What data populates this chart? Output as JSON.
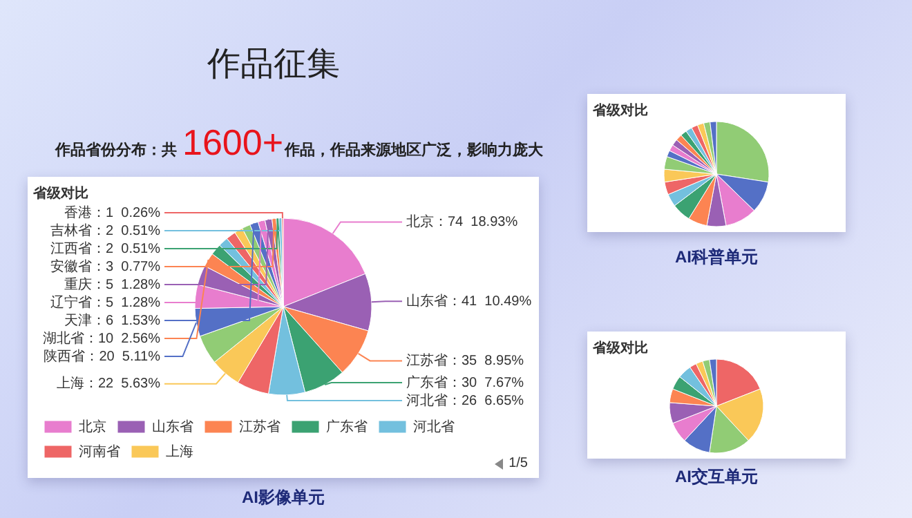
{
  "chart_data": [
    {
      "type": "other",
      "title": "作品征集",
      "annotations": [
        "作品省份分布：共",
        "1600+",
        "作品，作品来源地区广泛，影响力庞大"
      ]
    },
    {
      "type": "pie",
      "title": "省级对比",
      "legend": "bottom",
      "annotations": [
        "1/5",
        "AI影像单元"
      ],
      "categories": [
        "北京",
        "山东省",
        "江苏省",
        "广东省",
        "河北省",
        "河南省",
        "上海",
        null,
        "陕西省",
        null,
        null,
        "湖北省",
        null,
        null,
        null,
        null,
        null,
        "天津",
        "辽宁省",
        "重庆",
        "安徽省",
        "江西省",
        "吉林省",
        "香港"
      ],
      "values": [
        74,
        41,
        35,
        30,
        26,
        23,
        22,
        21,
        20,
        17,
        14,
        10,
        8,
        7,
        7,
        6,
        6,
        6,
        5,
        5,
        3,
        2,
        2,
        1
      ],
      "value_labels": [
        "：74  18.93%",
        "：41  10.49%",
        "：35  8.95%",
        "：30  7.67%",
        "：26  6.65%",
        null,
        "：22  5.63%",
        null,
        "：20  5.11%",
        null,
        null,
        "：10  2.56%",
        null,
        null,
        null,
        null,
        null,
        "：6  1.53%",
        "：5  1.28%",
        "：5  1.28%",
        "：3  0.77%",
        "：2  0.51%",
        "：2  0.51%",
        "：1  0.26%"
      ],
      "colors": [
        "#e87dce",
        "#9a60b4",
        "#fc8452",
        "#3ba272",
        "#73c0de",
        "#ee6666",
        "#fac858",
        "#91cc75",
        "#5470c6",
        "#e87dce",
        "#9a60b4",
        "#fc8452",
        "#3ba272",
        "#73c0de",
        "#ee6666",
        "#fac858",
        "#91cc75",
        "#5470c6",
        "#e87dce",
        "#9a60b4",
        "#fc8452",
        "#3ba272",
        "#73c0de",
        "#ee6666"
      ]
    },
    {
      "type": "pie",
      "title": "省级对比",
      "annotations": [
        "AI科普单元"
      ],
      "categories": [
        null,
        null,
        null,
        null,
        null,
        null,
        null,
        null,
        null,
        null,
        null,
        null,
        null,
        null,
        null,
        null,
        null,
        null,
        null,
        null
      ],
      "values": [
        27.45,
        9.8,
        9.8,
        5.88,
        5.88,
        5.88,
        3.92,
        3.92,
        3.92,
        3.92,
        1.96,
        1.96,
        1.96,
        1.96,
        1.96,
        1.96,
        1.96,
        1.96,
        1.96,
        1.96
      ],
      "colors": [
        "#91cc75",
        "#5470c6",
        "#e87dce",
        "#9a60b4",
        "#fc8452",
        "#3ba272",
        "#73c0de",
        "#ee6666",
        "#fac858",
        "#91cc75",
        "#5470c6",
        "#e87dce",
        "#9a60b4",
        "#fc8452",
        "#3ba272",
        "#73c0de",
        "#ee6666",
        "#fac858",
        "#91cc75",
        "#5470c6"
      ]
    },
    {
      "type": "pie",
      "title": "省级对比",
      "annotations": [
        "AI交互单元"
      ],
      "categories": [
        null,
        null,
        null,
        null,
        null,
        null,
        null,
        null,
        null,
        null,
        null,
        null,
        null
      ],
      "values": [
        19.05,
        19.05,
        14.29,
        9.52,
        7.14,
        7.14,
        4.76,
        4.76,
        4.76,
        2.38,
        2.38,
        2.38,
        2.38
      ],
      "colors": [
        "#ee6666",
        "#fac858",
        "#91cc75",
        "#5470c6",
        "#e87dce",
        "#9a60b4",
        "#fc8452",
        "#3ba272",
        "#73c0de",
        "#ee6666",
        "#fac858",
        "#91cc75",
        "#5470c6"
      ]
    }
  ]
}
